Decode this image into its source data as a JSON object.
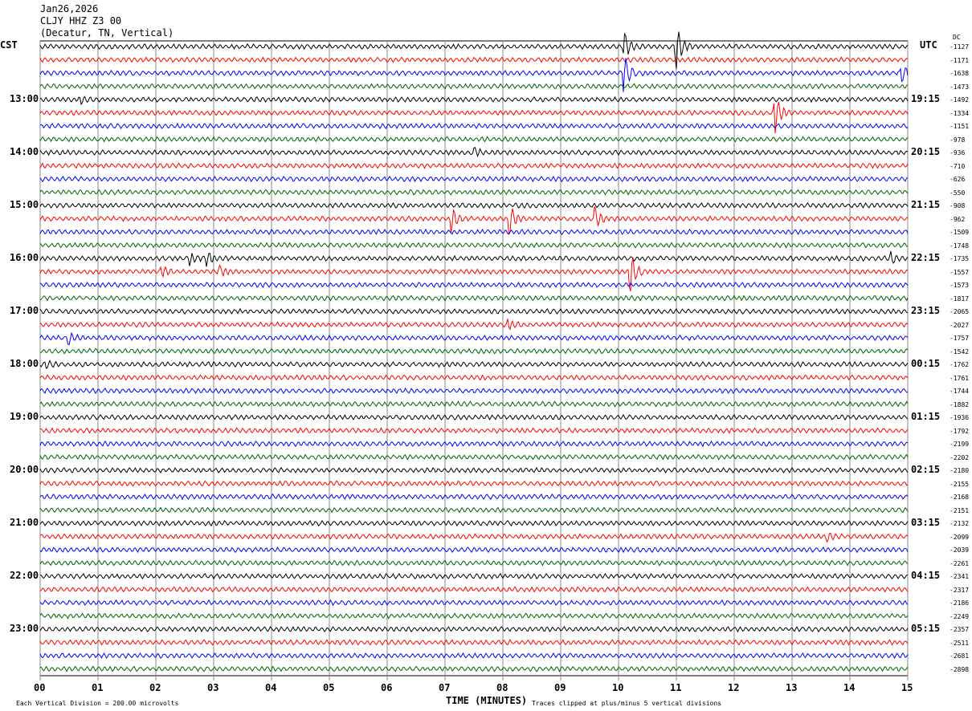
{
  "header": {
    "date": "Jan26,2026",
    "station": "CLJY HHZ Z3 00",
    "location": "(Decatur, TN, Vertical)"
  },
  "left_tz": "CST",
  "right_tz": "UTC",
  "dc_label": "DC",
  "left_hours": [
    "13:00",
    "14:00",
    "15:00",
    "16:00",
    "17:00",
    "18:00",
    "19:00",
    "20:00",
    "21:00",
    "22:00",
    "23:00"
  ],
  "right_hours": [
    "19:15",
    "20:15",
    "21:15",
    "22:15",
    "23:15",
    "00:15",
    "01:15",
    "02:15",
    "03:15",
    "04:15",
    "05:15"
  ],
  "footer": {
    "scale": "Each Vertical Division =  200.00 microvolts",
    "xlabel": "TIME (MINUTES)",
    "clip": "Traces clipped at plus/minus 5 vertical divisions"
  },
  "chart_data": {
    "type": "line",
    "title": "CLJY HHZ Z3 00 helicorder",
    "xlabel": "TIME (MINUTES)",
    "xlim": [
      0,
      15
    ],
    "x_ticks": [
      "00",
      "01",
      "02",
      "03",
      "04",
      "05",
      "06",
      "07",
      "08",
      "09",
      "10",
      "11",
      "12",
      "13",
      "14",
      "15"
    ],
    "trace_colors": [
      "#000000",
      "#ff0000",
      "#0000ff",
      "#006400"
    ],
    "trace_count": 48,
    "dc_offsets": [
      -1127,
      -1171,
      -1638,
      -1473,
      -1492,
      -1334,
      -1151,
      -978,
      -936,
      -710,
      -626,
      -550,
      -908,
      -962,
      -1509,
      -1748,
      -1735,
      -1557,
      -1573,
      -1817,
      -2065,
      -2027,
      -1757,
      -1542,
      -1762,
      -1761,
      -1744,
      -1882,
      -1936,
      -1792,
      -2199,
      -2202,
      -2180,
      -2155,
      -2168,
      -2151,
      -2132,
      -2099,
      -2039,
      -2261,
      -2341,
      -2317,
      -2186,
      -2249,
      -2357,
      -2511,
      -2681,
      -2898
    ],
    "events": [
      {
        "trace": 0,
        "minute": 11.0,
        "amp": 5
      },
      {
        "trace": 0,
        "minute": 10.1,
        "amp": 3
      },
      {
        "trace": 2,
        "minute": 10.1,
        "amp": 4
      },
      {
        "trace": 2,
        "minute": 14.9,
        "amp": 2
      },
      {
        "trace": 5,
        "minute": 12.7,
        "amp": 5
      },
      {
        "trace": 4,
        "minute": 0.7,
        "amp": 1
      },
      {
        "trace": 8,
        "minute": 7.5,
        "amp": 1
      },
      {
        "trace": 13,
        "minute": 7.1,
        "amp": 3
      },
      {
        "trace": 13,
        "minute": 8.1,
        "amp": 4
      },
      {
        "trace": 13,
        "minute": 9.6,
        "amp": 2.5
      },
      {
        "trace": 16,
        "minute": 2.6,
        "amp": 1.2
      },
      {
        "trace": 16,
        "minute": 2.9,
        "amp": 1.3
      },
      {
        "trace": 16,
        "minute": 14.7,
        "amp": 1.3
      },
      {
        "trace": 17,
        "minute": 10.2,
        "amp": 5
      },
      {
        "trace": 17,
        "minute": 2.1,
        "amp": 1.2
      },
      {
        "trace": 17,
        "minute": 3.1,
        "amp": 1
      },
      {
        "trace": 21,
        "minute": 8.1,
        "amp": 1
      },
      {
        "trace": 22,
        "minute": 0.5,
        "amp": 1.2
      },
      {
        "trace": 24,
        "minute": 0.1,
        "amp": 1
      },
      {
        "trace": 37,
        "minute": 13.6,
        "amp": 1
      }
    ]
  }
}
